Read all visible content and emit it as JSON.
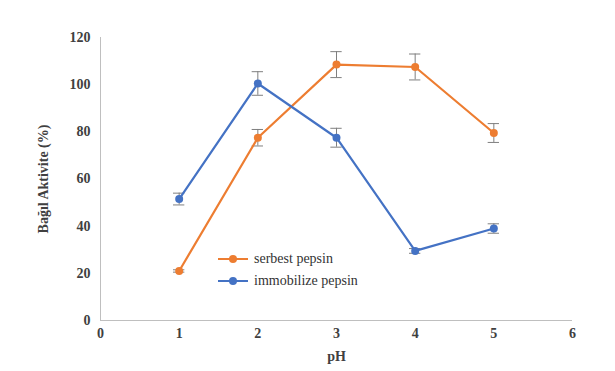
{
  "chart_data": {
    "type": "line",
    "x_label": "pH",
    "y_label": "Bağıl Aktivite (%)",
    "x": [
      1,
      2,
      3,
      4,
      5
    ],
    "xlim": [
      0,
      6
    ],
    "xticks": [
      0,
      1,
      2,
      3,
      4,
      5,
      6
    ],
    "ylim": [
      0,
      120
    ],
    "yticks": [
      0,
      20,
      40,
      60,
      80,
      100,
      120
    ],
    "grid": false,
    "legend": "lower center",
    "series": [
      {
        "name": "serbest pepsin",
        "color": "#ed7d31",
        "marker": "circle",
        "values": [
          21,
          77.5,
          108.5,
          107.5,
          79.5
        ],
        "errors": [
          0.5,
          3.5,
          5.5,
          5.5,
          4
        ]
      },
      {
        "name": "immobilize pepsin",
        "color": "#4472c4",
        "marker": "circle",
        "values": [
          51.5,
          100.5,
          77.5,
          29.5,
          39
        ],
        "errors": [
          2.5,
          5,
          4,
          1,
          2
        ]
      }
    ]
  }
}
